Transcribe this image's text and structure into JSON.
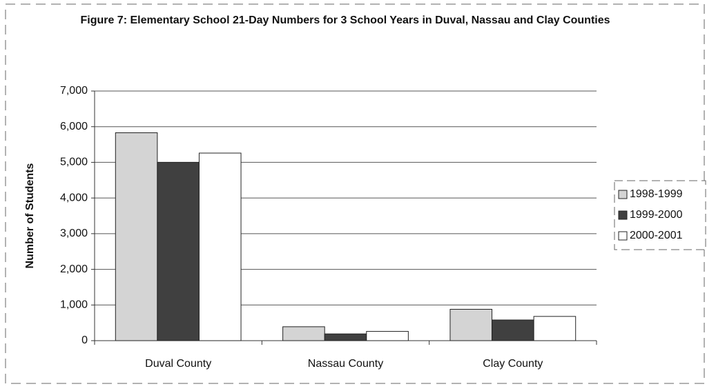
{
  "chart_data": {
    "type": "bar",
    "title": "Figure 7: Elementary School 21-Day Numbers for 3 School Years in Duval, Nassau and Clay Counties",
    "ylabel": "Number of Students",
    "categories": [
      "Duval County",
      "Nassau County",
      "Clay County"
    ],
    "series": [
      {
        "name": "1998-1999",
        "color": "#d4d4d4",
        "values": [
          5830,
          390,
          880
        ]
      },
      {
        "name": "1999-2000",
        "color": "#404040",
        "values": [
          5000,
          190,
          580
        ]
      },
      {
        "name": "2000-2001",
        "color": "#ffffff",
        "values": [
          5260,
          260,
          680
        ]
      }
    ],
    "ylim": [
      0,
      7000
    ],
    "yticks": [
      0,
      {
        "value": 1000,
        "label": "1,000"
      },
      {
        "value": 2000,
        "label": "2,000"
      },
      {
        "value": 3000,
        "label": "3,000"
      },
      {
        "value": 4000,
        "label": "4,000"
      },
      {
        "value": 5000,
        "label": "5,000"
      },
      {
        "value": 6000,
        "label": "6,000"
      },
      {
        "value": 7000,
        "label": "7,000"
      }
    ],
    "grid": true,
    "legend": "right"
  }
}
